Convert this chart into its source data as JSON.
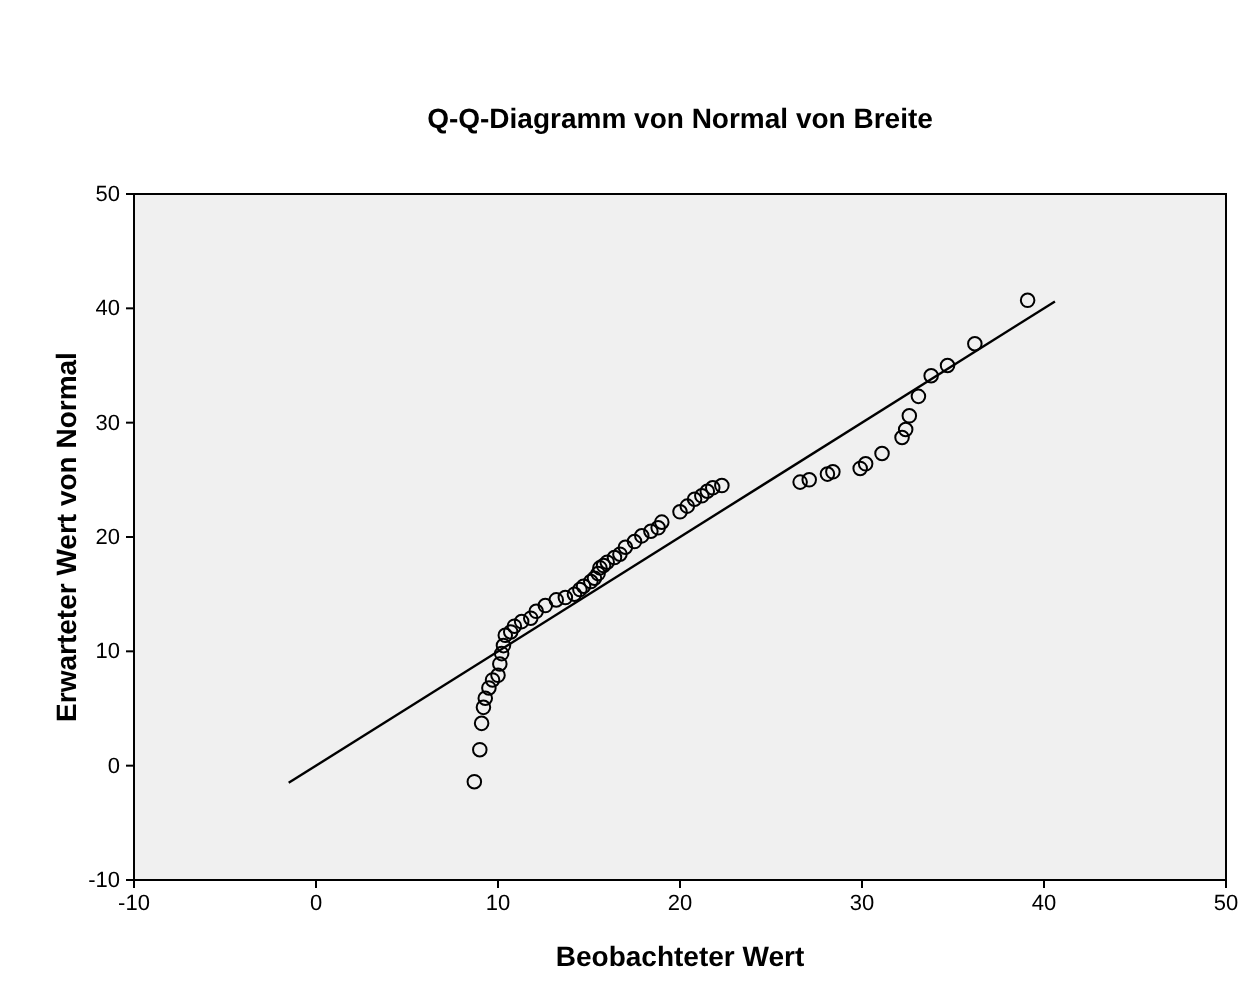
{
  "chart_data": {
    "type": "scatter",
    "title": "Q-Q-Diagramm von Normal von Breite",
    "xlabel": "Beobachteter Wert",
    "ylabel": "Erwarteter Wert von Normal",
    "xlim": [
      -10,
      50
    ],
    "xticks": [
      -10,
      0,
      10,
      20,
      30,
      40,
      50
    ],
    "ylim": [
      -10,
      50
    ],
    "yticks": [
      -10,
      0,
      10,
      20,
      30,
      40,
      50
    ],
    "grid": false,
    "series": [
      {
        "marker": "circle",
        "color": "#000000",
        "x": [
          8.7,
          9.0,
          9.1,
          9.2,
          9.3,
          9.5,
          9.7,
          10.0,
          10.1,
          10.2,
          10.3,
          10.4,
          10.7,
          10.9,
          11.3,
          11.8,
          12.1,
          12.6,
          13.2,
          13.7,
          14.2,
          14.5,
          14.7,
          15.1,
          15.3,
          15.5,
          15.6,
          15.8,
          16.0,
          16.4,
          16.7,
          17.0,
          17.5,
          17.9,
          18.4,
          18.8,
          19.0,
          20.0,
          20.4,
          20.8,
          21.2,
          21.5,
          21.8,
          22.3,
          26.6,
          27.1,
          28.1,
          28.4,
          29.9,
          30.2,
          31.1,
          32.2,
          32.4,
          32.6,
          33.1,
          33.8,
          34.7,
          36.2,
          39.1
        ],
        "values": [
          -1.4,
          1.4,
          3.7,
          5.1,
          5.9,
          6.8,
          7.5,
          7.9,
          8.9,
          9.8,
          10.5,
          11.4,
          11.7,
          12.2,
          12.6,
          12.9,
          13.5,
          14.0,
          14.5,
          14.7,
          15.0,
          15.4,
          15.7,
          16.1,
          16.4,
          16.8,
          17.3,
          17.5,
          17.8,
          18.2,
          18.5,
          19.1,
          19.6,
          20.1,
          20.5,
          20.8,
          21.3,
          22.2,
          22.7,
          23.3,
          23.6,
          24.0,
          24.3,
          24.5,
          24.8,
          25.0,
          25.5,
          25.7,
          26.0,
          26.4,
          27.3,
          28.7,
          29.4,
          30.6,
          32.3,
          34.1,
          35.0,
          36.9,
          40.7
        ]
      },
      {
        "type": "line",
        "marker": "none",
        "line_style": "solid",
        "color": "#000000",
        "x": [
          -1.5,
          40.6
        ],
        "values": [
          -1.5,
          40.6
        ]
      }
    ]
  }
}
